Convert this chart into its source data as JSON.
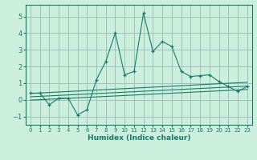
{
  "xlabel": "Humidex (Indice chaleur)",
  "background_color": "#cceedd",
  "grid_color": "#99bbbb",
  "line_color": "#1a7a6a",
  "xlim": [
    -0.5,
    23.5
  ],
  "ylim": [
    -1.5,
    5.7
  ],
  "xticks": [
    0,
    1,
    2,
    3,
    4,
    5,
    6,
    7,
    8,
    9,
    10,
    11,
    12,
    13,
    14,
    15,
    16,
    17,
    18,
    19,
    20,
    21,
    22,
    23
  ],
  "yticks": [
    -1,
    0,
    1,
    2,
    3,
    4,
    5
  ],
  "main_x": [
    0,
    1,
    2,
    3,
    4,
    5,
    6,
    7,
    8,
    9,
    10,
    11,
    12,
    13,
    14,
    15,
    16,
    17,
    18,
    19,
    20,
    21,
    22,
    23
  ],
  "main_y": [
    0.4,
    0.4,
    -0.3,
    0.1,
    0.1,
    -0.9,
    -0.6,
    1.2,
    2.3,
    4.0,
    1.5,
    1.7,
    5.2,
    2.9,
    3.5,
    3.2,
    1.7,
    1.4,
    1.45,
    1.5,
    1.1,
    0.8,
    0.5,
    0.8
  ],
  "line1_x": [
    0,
    23
  ],
  "line1_y": [
    0.38,
    1.05
  ],
  "line2_x": [
    0,
    23
  ],
  "line2_y": [
    0.18,
    0.82
  ],
  "line3_x": [
    0,
    23
  ],
  "line3_y": [
    -0.02,
    0.62
  ]
}
